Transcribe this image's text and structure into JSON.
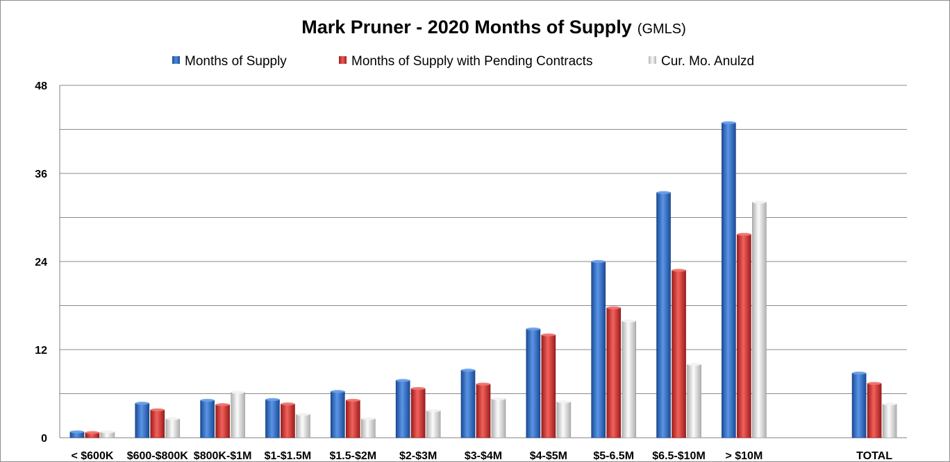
{
  "title": "Mark Pruner -  2020 Months of Supply",
  "subtitle": "(GMLS)",
  "colors": {
    "blue": "#2e6dc8",
    "red": "#d9302f",
    "white": "#e2e2e2"
  },
  "chart_data": {
    "type": "bar",
    "title": "Mark Pruner -  2020 Months of Supply (GMLS)",
    "xlabel": "",
    "ylabel": "",
    "ylim": [
      0,
      48
    ],
    "yticks": [
      0,
      12,
      24,
      36,
      48
    ],
    "grid": true,
    "legend_position": "top",
    "categories": [
      "< $600K",
      "$600-$800K",
      "$800K-$1M",
      "$1-$1.5M",
      "$1.5-$2M",
      "$2-$3M",
      "$3-$4M",
      "$4-$5M",
      "$5-6.5M",
      "$6.5-$10M",
      "> $10M",
      "",
      "TOTAL"
    ],
    "series": [
      {
        "name": "Months of Supply",
        "color": "#2e6dc8",
        "values": [
          0.8,
          4.7,
          5.1,
          5.2,
          6.3,
          7.8,
          9.2,
          14.8,
          24.0,
          33.4,
          42.9,
          null,
          8.8
        ]
      },
      {
        "name": "Months of Supply with Pending Contracts",
        "color": "#d9302f",
        "values": [
          0.7,
          3.8,
          4.5,
          4.6,
          5.1,
          6.7,
          7.3,
          14.0,
          17.7,
          22.8,
          27.7,
          null,
          7.4
        ]
      },
      {
        "name": "Cur. Mo. Anulzd",
        "color": "#e2e2e2",
        "values": [
          0.8,
          2.6,
          6.2,
          3.2,
          2.6,
          3.7,
          5.3,
          4.9,
          15.9,
          10.0,
          32.1,
          null,
          4.6
        ]
      }
    ]
  }
}
